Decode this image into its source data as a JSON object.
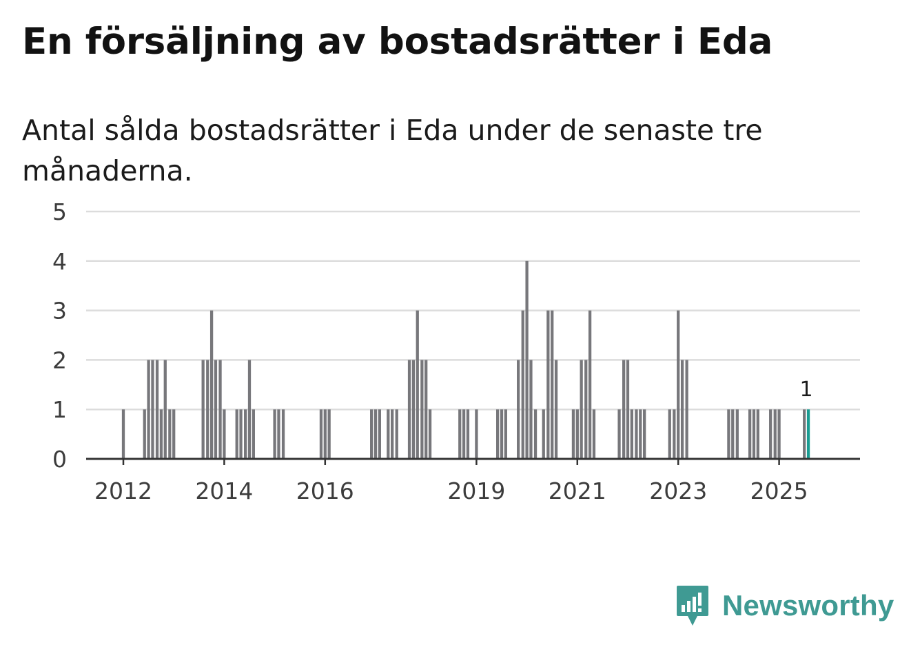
{
  "title": "En försäljning av bostadsrätter i Eda",
  "subtitle": "Antal sålda bostadsrätter i Eda under de senaste tre månaderna.",
  "brand": {
    "name": "Newsworthy",
    "icon": "newsworthy-logo-icon"
  },
  "colors": {
    "bar": "#77777b",
    "highlight": "#1a9c92",
    "grid": "#dcdcdc",
    "axis": "#333333",
    "brand": "#3f9a93"
  },
  "chart_data": {
    "type": "bar",
    "title": "En försäljning av bostadsrätter i Eda",
    "subtitle": "Antal sålda bostadsrätter i Eda under de senaste tre månaderna.",
    "xlabel": "",
    "ylabel": "",
    "ylim": [
      0,
      5
    ],
    "xlim": [
      2011.2,
      2026.8
    ],
    "yticks": [
      0,
      1,
      2,
      3,
      4,
      5
    ],
    "xticks": [
      2012,
      2014,
      2016,
      2019,
      2021,
      2023,
      2025
    ],
    "grid": true,
    "bar_width_years": 0.0583,
    "highlight_label": "1",
    "x": [
      2012.0,
      2012.42,
      2012.5,
      2012.58,
      2012.67,
      2012.75,
      2012.83,
      2012.92,
      2013.0,
      2013.58,
      2013.67,
      2013.75,
      2013.83,
      2013.92,
      2014.0,
      2014.25,
      2014.33,
      2014.42,
      2014.5,
      2014.58,
      2015.0,
      2015.08,
      2015.17,
      2015.92,
      2016.0,
      2016.08,
      2016.92,
      2017.0,
      2017.08,
      2017.25,
      2017.33,
      2017.42,
      2017.67,
      2017.75,
      2017.83,
      2017.92,
      2018.0,
      2018.08,
      2018.67,
      2018.75,
      2018.83,
      2019.0,
      2019.42,
      2019.5,
      2019.58,
      2019.83,
      2019.92,
      2020.0,
      2020.08,
      2020.17,
      2020.33,
      2020.42,
      2020.5,
      2020.58,
      2020.92,
      2021.0,
      2021.08,
      2021.17,
      2021.25,
      2021.33,
      2021.83,
      2021.92,
      2022.0,
      2022.08,
      2022.17,
      2022.25,
      2022.33,
      2022.83,
      2022.92,
      2023.0,
      2023.08,
      2023.17,
      2024.0,
      2024.08,
      2024.17,
      2024.42,
      2024.5,
      2024.58,
      2024.83,
      2024.92,
      2025.0,
      2025.5,
      2025.58
    ],
    "values": [
      1,
      1,
      2,
      2,
      2,
      1,
      2,
      1,
      1,
      2,
      2,
      3,
      2,
      2,
      1,
      1,
      1,
      1,
      2,
      1,
      1,
      1,
      1,
      1,
      1,
      1,
      1,
      1,
      1,
      1,
      1,
      1,
      2,
      2,
      3,
      2,
      2,
      1,
      1,
      1,
      1,
      1,
      1,
      1,
      1,
      2,
      3,
      4,
      2,
      1,
      1,
      3,
      3,
      2,
      1,
      1,
      2,
      2,
      3,
      1,
      1,
      2,
      2,
      1,
      1,
      1,
      1,
      1,
      1,
      3,
      2,
      2,
      1,
      1,
      1,
      1,
      1,
      1,
      1,
      1,
      1,
      1,
      1
    ],
    "highlight_index": 82
  }
}
